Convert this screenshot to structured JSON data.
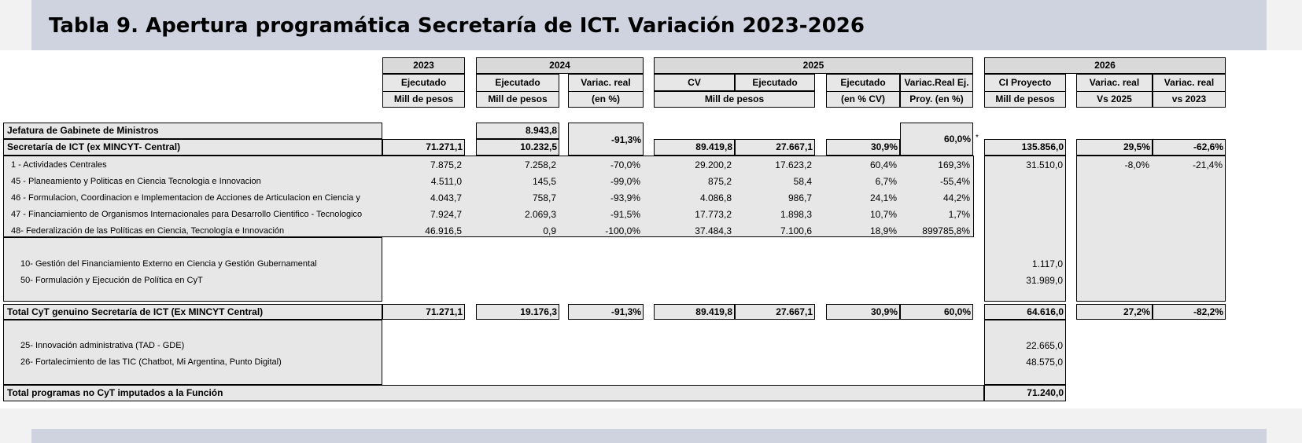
{
  "title": "Tabla 9. Apertura programática Secretaría de ICT. Variación 2023-2026",
  "header": {
    "y2023": "2023",
    "y2024": "2024",
    "y2025": "2025",
    "y2026": "2026",
    "ejecutado": "Ejecutado",
    "variac_real": "Variac. real",
    "cv": "CV",
    "variac_real_ej": "Variac.Real Ej.",
    "ci_proyecto": "CI Proyecto",
    "mill_de_pesos": "Mill de pesos",
    "en_pct": "(en %)",
    "en_pct_cv": "(en % CV)",
    "proy_en_pct": "Proy. (en %)",
    "vs_2025": "Vs 2025",
    "vs_2023": "vs 2023"
  },
  "jefatura": {
    "label": "Jefatura de Gabinete de Ministros",
    "v2024": "8.943,8"
  },
  "merged": {
    "var2024": "-91,3%",
    "varproy2025": "60,0%",
    "asterisk": "*"
  },
  "secretaria": {
    "label": "Secretaría de ICT (ex MINCYT- Central)",
    "v2023": "71.271,1",
    "v2024": "10.232,5",
    "cv2025": "89.419,8",
    "ej2025": "27.667,1",
    "pct_cv": "30,9%",
    "ci2026": "135.856,0",
    "vs2025": "29,5%",
    "vs2023": "-62,6%"
  },
  "programs": [
    {
      "label": "1 - Actividades Centrales",
      "v2023": "7.875,2",
      "v2024": "7.258,2",
      "var2024": "-70,0%",
      "cv2025": "29.200,2",
      "ej2025": "17.623,2",
      "pct_cv": "60,4%",
      "varproy": "169,3%",
      "ci2026": "31.510,0",
      "vs2025": "-8,0%",
      "vs2023": "-21,4%"
    },
    {
      "label": "45 - Planeamiento y Politicas en Ciencia Tecnologia e Innovacion",
      "v2023": "4.511,0",
      "v2024": "145,5",
      "var2024": "-99,0%",
      "cv2025": "875,2",
      "ej2025": "58,4",
      "pct_cv": "6,7%",
      "varproy": "-55,4%",
      "ci2026": "",
      "vs2025": "",
      "vs2023": ""
    },
    {
      "label": "46 - Formulacion, Coordinacion e Implementacion de Acciones de Articulacion en Ciencia y",
      "v2023": "4.043,7",
      "v2024": "758,7",
      "var2024": "-93,9%",
      "cv2025": "4.086,8",
      "ej2025": "986,7",
      "pct_cv": "24,1%",
      "varproy": "44,2%",
      "ci2026": "",
      "vs2025": "",
      "vs2023": ""
    },
    {
      "label": "47 - Financiamiento de Organismos Internacionales para Desarrollo Cientifico - Tecnologico",
      "v2023": "7.924,7",
      "v2024": "2.069,3",
      "var2024": "-91,5%",
      "cv2025": "17.773,2",
      "ej2025": "1.898,3",
      "pct_cv": "10,7%",
      "varproy": "1,7%",
      "ci2026": "",
      "vs2025": "",
      "vs2023": ""
    },
    {
      "label": "48- Federalización de las Políticas en Ciencia, Tecnología e Innovación",
      "v2023": "46.916,5",
      "v2024": "0,9",
      "var2024": "-100,0%",
      "cv2025": "37.484,3",
      "ej2025": "7.100,6",
      "pct_cv": "18,9%",
      "varproy": "899785,8%",
      "ci2026": "",
      "vs2025": "",
      "vs2023": ""
    }
  ],
  "new_programs": [
    {
      "label": "10- Gestión del Financiamiento Externo en Ciencia y Gestión Gubernamental",
      "ci2026": "1.117,0"
    },
    {
      "label": "50- Formulación y Ejecución de Política en CyT",
      "ci2026": "31.989,0"
    }
  ],
  "total_cyt": {
    "label": "Total CyT genuino Secretaría de ICT (Ex MINCYT Central)",
    "v2023": "71.271,1",
    "v2024": "19.176,3",
    "var2024": "-91,3%",
    "cv2025": "89.419,8",
    "ej2025": "27.667,1",
    "pct_cv": "30,9%",
    "varproy": "60,0%",
    "ci2026": "64.616,0",
    "vs2025": "27,2%",
    "vs2023": "-82,2%"
  },
  "no_cyt_programs": [
    {
      "label": "25- Innovación administrativa (TAD -  GDE)",
      "ci2026": "22.665,0"
    },
    {
      "label": "26- Fortalecimiento de las TIC (Chatbot, Mi Argentina, Punto Digital)",
      "ci2026": "48.575,0"
    }
  ],
  "total_no_cyt": {
    "label": "Total programas no CyT imputados a la Función",
    "ci2026": "71.240,0"
  }
}
